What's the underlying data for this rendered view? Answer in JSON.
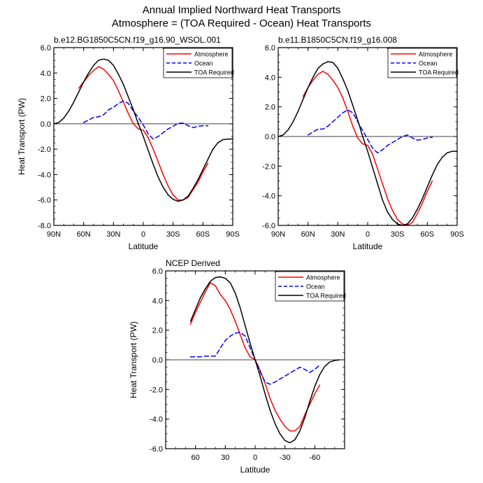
{
  "figure": {
    "title_line1": "Annual Implied Northward Heat Transports",
    "title_line2": "Atmosphere = (TOA Required - Ocean) Heat Transports"
  },
  "colors": {
    "atmosphere": "#ff0000",
    "ocean": "#0000ff",
    "toa": "#000000",
    "zero_line": "#000000"
  },
  "chart_data": [
    {
      "type": "line",
      "title": "b.e12.BG1850C5CN.f19_g16.90_WSOL.001",
      "xlabel": "Latitude",
      "ylabel": "Heat Transport (PW)",
      "xlim": [
        90,
        -90
      ],
      "ylim": [
        -8,
        6
      ],
      "xticks": [
        90,
        60,
        30,
        0,
        -30,
        -60,
        -90
      ],
      "xticklabels": [
        "90N",
        "60N",
        "30N",
        "0",
        "30S",
        "60S",
        "90S"
      ],
      "yticks": [
        -8,
        -6,
        -4,
        -2,
        0,
        2,
        4,
        6
      ],
      "yticklabels": [
        "-8.0",
        "-6.0",
        "-4.0",
        "-2.0",
        "0.0",
        "2.0",
        "4.0",
        "6.0"
      ],
      "legend": "top-right",
      "series": [
        {
          "name": "Atmosphere",
          "style": "solid",
          "x": [
            65,
            60,
            55,
            50,
            45,
            40,
            35,
            30,
            25,
            20,
            15,
            10,
            5,
            0,
            -5,
            -10,
            -15,
            -20,
            -25,
            -30,
            -35,
            -40,
            -45,
            -50,
            -55,
            -60,
            -65
          ],
          "y": [
            2.8,
            3.3,
            3.8,
            4.2,
            4.5,
            4.3,
            3.9,
            3.4,
            2.6,
            1.7,
            0.8,
            0.0,
            -0.4,
            -0.5,
            -1.1,
            -2.0,
            -3.0,
            -4.0,
            -4.9,
            -5.6,
            -6.0,
            -6.0,
            -5.8,
            -5.2,
            -4.6,
            -3.8,
            -3.1
          ]
        },
        {
          "name": "Ocean",
          "style": "dashed",
          "x": [
            60,
            55,
            50,
            45,
            40,
            35,
            30,
            25,
            20,
            15,
            10,
            5,
            0,
            -5,
            -10,
            -15,
            -20,
            -25,
            -30,
            -35,
            -40,
            -45,
            -50,
            -55,
            -60,
            -65
          ],
          "y": [
            0.1,
            0.3,
            0.5,
            0.55,
            0.7,
            1.1,
            1.3,
            1.6,
            1.8,
            1.6,
            1.0,
            0.5,
            -0.1,
            -0.8,
            -1.2,
            -1.0,
            -0.7,
            -0.4,
            -0.2,
            0.05,
            0.05,
            -0.15,
            -0.3,
            -0.2,
            -0.15,
            -0.15
          ]
        },
        {
          "name": "TOA Required",
          "style": "solid",
          "x": [
            90,
            85,
            80,
            75,
            70,
            65,
            60,
            55,
            50,
            45,
            40,
            35,
            30,
            25,
            20,
            15,
            10,
            5,
            0,
            -5,
            -10,
            -15,
            -20,
            -25,
            -30,
            -35,
            -40,
            -45,
            -50,
            -55,
            -60,
            -65,
            -70,
            -75,
            -80,
            -85,
            -90
          ],
          "y": [
            0.0,
            0.1,
            0.45,
            1.0,
            1.7,
            2.5,
            3.3,
            4.0,
            4.6,
            5.0,
            5.1,
            5.0,
            4.6,
            3.9,
            3.1,
            2.1,
            1.1,
            0.0,
            -1.0,
            -2.1,
            -3.2,
            -4.2,
            -5.0,
            -5.6,
            -5.95,
            -6.1,
            -6.0,
            -5.7,
            -5.1,
            -4.4,
            -3.6,
            -2.8,
            -2.0,
            -1.5,
            -1.25,
            -1.2,
            -1.2
          ]
        }
      ]
    },
    {
      "type": "line",
      "title": "b.e11.B1850C5CN.f19_g16.008",
      "xlabel": "Latitude",
      "ylabel": "",
      "xlim": [
        90,
        -90
      ],
      "ylim": [
        -6,
        6
      ],
      "xticks": [
        90,
        60,
        30,
        0,
        -30,
        -60,
        -90
      ],
      "xticklabels": [
        "90N",
        "60N",
        "30N",
        "0",
        "30S",
        "60S",
        "90S"
      ],
      "yticks": [
        -6,
        -4,
        -2,
        0,
        2,
        4,
        6
      ],
      "yticklabels": [
        "-6.0",
        "-4.0",
        "-2.0",
        "0.0",
        "2.0",
        "4.0",
        "6.0"
      ],
      "legend": "top-right",
      "series": [
        {
          "name": "Atmosphere",
          "style": "solid",
          "x": [
            65,
            60,
            55,
            50,
            45,
            40,
            35,
            30,
            25,
            20,
            15,
            10,
            5,
            0,
            -5,
            -10,
            -15,
            -20,
            -25,
            -30,
            -35,
            -40,
            -45,
            -50,
            -55,
            -60,
            -65
          ],
          "y": [
            2.7,
            3.3,
            3.8,
            4.2,
            4.4,
            4.2,
            3.8,
            3.3,
            2.6,
            1.7,
            0.7,
            -0.1,
            -0.5,
            -0.6,
            -1.2,
            -2.2,
            -3.2,
            -4.2,
            -5.0,
            -5.6,
            -5.9,
            -6.0,
            -5.8,
            -5.2,
            -4.5,
            -3.7,
            -3.0
          ]
        },
        {
          "name": "Ocean",
          "style": "dashed",
          "x": [
            60,
            55,
            50,
            45,
            40,
            35,
            30,
            25,
            20,
            15,
            10,
            5,
            0,
            -5,
            -10,
            -15,
            -20,
            -25,
            -30,
            -35,
            -40,
            -45,
            -50,
            -55,
            -60,
            -65
          ],
          "y": [
            0.1,
            0.3,
            0.5,
            0.5,
            0.7,
            1.0,
            1.3,
            1.6,
            1.8,
            1.6,
            1.0,
            0.4,
            -0.2,
            -0.8,
            -1.1,
            -0.9,
            -0.6,
            -0.4,
            -0.2,
            0.0,
            0.1,
            -0.1,
            -0.25,
            -0.2,
            -0.1,
            -0.05
          ]
        },
        {
          "name": "TOA Required",
          "style": "solid",
          "x": [
            90,
            85,
            80,
            75,
            70,
            65,
            60,
            55,
            50,
            45,
            40,
            35,
            30,
            25,
            20,
            15,
            10,
            5,
            0,
            -5,
            -10,
            -15,
            -20,
            -25,
            -30,
            -35,
            -40,
            -45,
            -50,
            -55,
            -60,
            -65,
            -70,
            -75,
            -80,
            -85,
            -90
          ],
          "y": [
            0.0,
            0.1,
            0.45,
            1.0,
            1.7,
            2.5,
            3.3,
            4.0,
            4.6,
            4.9,
            5.05,
            5.0,
            4.6,
            3.9,
            3.1,
            2.1,
            1.1,
            0.0,
            -1.0,
            -2.1,
            -3.2,
            -4.3,
            -5.1,
            -5.6,
            -5.9,
            -6.0,
            -5.9,
            -5.5,
            -4.9,
            -4.2,
            -3.4,
            -2.6,
            -1.9,
            -1.4,
            -1.1,
            -1.0,
            -1.0
          ]
        }
      ]
    },
    {
      "type": "line",
      "title": "NCEP Derived",
      "xlabel": "Latitude",
      "ylabel": "Heat Transport (PW)",
      "xlim": [
        90,
        -90
      ],
      "ylim": [
        -6,
        6
      ],
      "xticks": [
        60,
        30,
        0,
        -30,
        -60
      ],
      "xticklabels": [
        "60",
        "30",
        "0",
        "-30",
        "-60"
      ],
      "yticks": [
        -6,
        -4,
        -2,
        0,
        2,
        4,
        6
      ],
      "yticklabels": [
        "-6.0",
        "-4.0",
        "-2.0",
        "0.0",
        "2.0",
        "4.0",
        "6.0"
      ],
      "legend": "top-right",
      "series": [
        {
          "name": "Atmosphere",
          "style": "solid",
          "x": [
            65,
            60,
            55,
            50,
            45,
            40,
            35,
            30,
            25,
            20,
            15,
            10,
            5,
            0,
            -5,
            -10,
            -15,
            -20,
            -25,
            -30,
            -35,
            -40,
            -45,
            -50,
            -55,
            -60,
            -65
          ],
          "y": [
            2.4,
            3.2,
            3.9,
            4.6,
            5.2,
            5.0,
            4.4,
            4.0,
            3.4,
            2.6,
            1.7,
            0.8,
            0.2,
            0.0,
            -0.7,
            -1.6,
            -2.6,
            -3.4,
            -4.0,
            -4.5,
            -4.8,
            -4.8,
            -4.5,
            -3.7,
            -3.0,
            -2.3,
            -1.7
          ]
        },
        {
          "name": "Ocean",
          "style": "dashed",
          "x": [
            65,
            60,
            55,
            50,
            45,
            40,
            35,
            30,
            25,
            20,
            15,
            10,
            5,
            0,
            -5,
            -10,
            -15,
            -20,
            -25,
            -30,
            -35,
            -40,
            -45,
            -50,
            -55,
            -60,
            -65
          ],
          "y": [
            0.2,
            0.2,
            0.2,
            0.25,
            0.25,
            0.25,
            0.8,
            1.3,
            1.6,
            1.8,
            1.85,
            1.6,
            0.8,
            0.0,
            -0.8,
            -1.5,
            -1.65,
            -1.5,
            -1.3,
            -1.1,
            -0.9,
            -0.7,
            -0.5,
            -0.65,
            -0.85,
            -0.65,
            -0.35
          ]
        },
        {
          "name": "TOA Required",
          "style": "solid",
          "x": [
            65,
            60,
            55,
            50,
            45,
            40,
            35,
            30,
            25,
            20,
            15,
            10,
            5,
            0,
            -5,
            -10,
            -15,
            -20,
            -25,
            -30,
            -35,
            -40,
            -45,
            -50,
            -55,
            -60,
            -65,
            -70,
            -75,
            -80,
            -85
          ],
          "y": [
            2.6,
            3.4,
            4.2,
            4.8,
            5.3,
            5.55,
            5.6,
            5.5,
            5.2,
            4.5,
            3.5,
            2.3,
            1.1,
            0.0,
            -1.1,
            -2.3,
            -3.4,
            -4.3,
            -5.0,
            -5.45,
            -5.6,
            -5.4,
            -4.8,
            -3.9,
            -2.8,
            -1.8,
            -1.0,
            -0.45,
            -0.15,
            -0.05,
            0.0
          ]
        }
      ]
    }
  ]
}
